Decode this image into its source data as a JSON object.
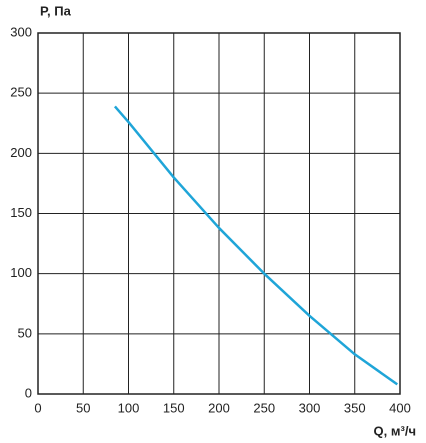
{
  "chart_data": {
    "type": "line",
    "y_label": "P, Па",
    "x_label": "Q, м³/ч",
    "series": [
      {
        "color": "#1fa5d8",
        "x": [
          85,
          100,
          150,
          200,
          250,
          300,
          350,
          397
        ],
        "values": [
          239,
          226,
          180,
          138,
          100,
          65,
          33,
          8
        ]
      }
    ],
    "xlim": [
      0,
      400
    ],
    "xticks": [
      0,
      50,
      100,
      150,
      200,
      250,
      300,
      350,
      400
    ],
    "ylim": [
      0,
      300
    ],
    "yticks": [
      0,
      50,
      100,
      150,
      200,
      250,
      300
    ],
    "grid": true
  }
}
